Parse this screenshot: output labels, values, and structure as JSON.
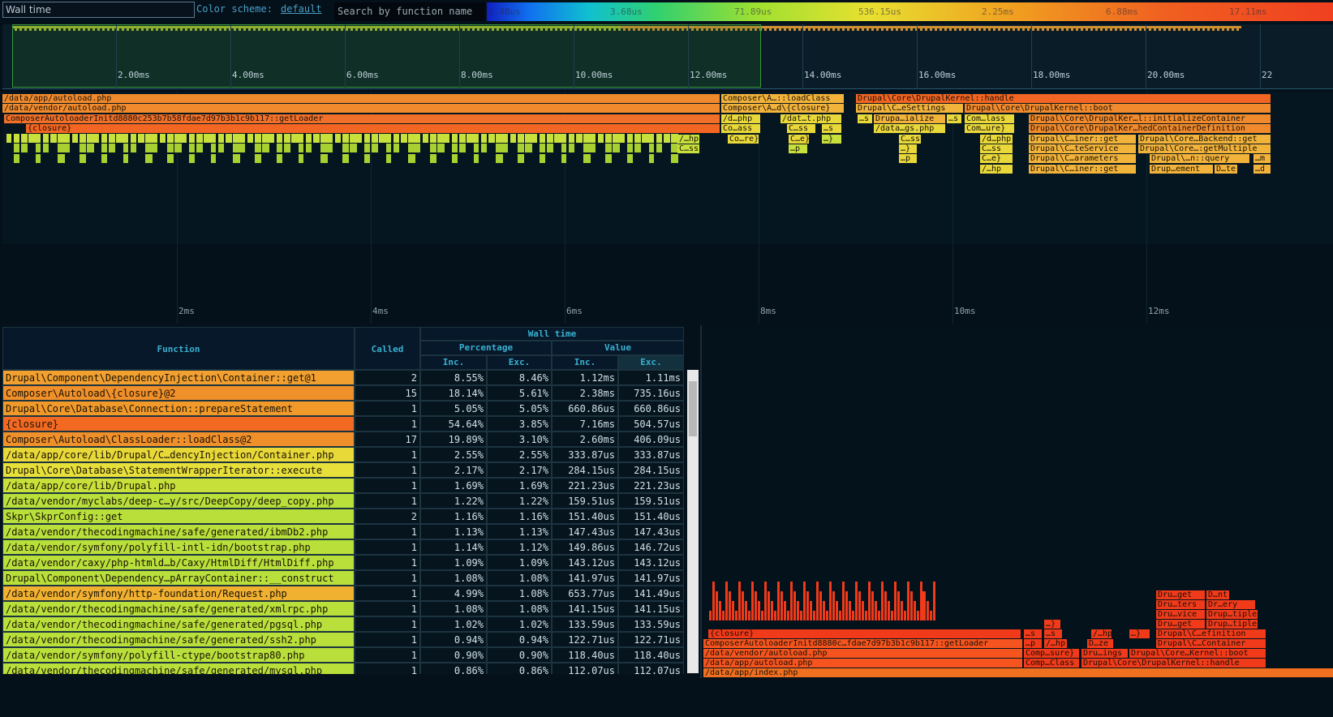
{
  "toolbar": {
    "metric": "Wall time",
    "color_scheme_label": "Color scheme:",
    "color_scheme": "default",
    "search_placeholder": "Search by function name",
    "legend": [
      "1.48us",
      "3.68us",
      "71.89us",
      "536.15us",
      "2.25ms",
      "6.88ms",
      "17.11ms"
    ]
  },
  "overview": {
    "ticks": [
      "2.00ms",
      "4.00ms",
      "6.00ms",
      "8.00ms",
      "10.00ms",
      "12.00ms",
      "14.00ms",
      "16.00ms",
      "18.00ms",
      "20.00ms",
      "22"
    ]
  },
  "timeline": {
    "ticks": [
      "2ms",
      "4ms",
      "6ms",
      "8ms",
      "10ms",
      "12ms"
    ],
    "frames": [
      "/data/app/autoload.php",
      "Composer\\A…::loadClass",
      "Drupal\\Core\\DrupalKernel::handle",
      "/data/vendor/autoload.php",
      "Composer\\A…d\\{closure}",
      "Drupal\\C…eSettings",
      "Drupal\\Core\\DrupalKernel::boot",
      "ComposerAutoloaderInitd8880c253b7b58fdae7d97b3b1c9b117::getLoader",
      "/d…php",
      "/dat…t.php",
      "…s",
      "Drupa…ialize",
      "…s",
      "Com…lass",
      "Drupal\\Core\\DrupalKer…l::initializeContainer",
      "{closure}",
      "Co…ass",
      "C…ss",
      "…s",
      "/data…gs.php",
      "Com…ure}",
      "Drupal\\Core\\DrupalKer…hedContainerDefinition",
      "/…hp",
      "Co…re}",
      "C…e}",
      "…}",
      "C…ss",
      "/d…php",
      "Drupal\\C…iner::get",
      "Drupal\\Core…Backend::get",
      "C…ss",
      "…p",
      "…}",
      "C…ss",
      "Drupal\\C…teService",
      "Drupal\\Core…:getMultiple",
      "…p",
      "C…e}",
      "Drupal\\C…arameters",
      "Drupal\\…n::query",
      "…m",
      "/…hp",
      "Drupal\\C…iner::get",
      "Drup…ement",
      "D…te",
      "…d"
    ]
  },
  "table": {
    "header": {
      "group": "Wall time",
      "function": "Function",
      "called": "Called",
      "percentage": "Percentage",
      "value": "Value",
      "inc": "Inc.",
      "exc": "Exc."
    },
    "rows": [
      [
        "Drupal\\Component\\DependencyInjection\\Container::get@1",
        2,
        "8.55%",
        "8.46%",
        "1.12ms",
        "1.11ms"
      ],
      [
        "Composer\\Autoload\\{closure}@2",
        15,
        "18.14%",
        "5.61%",
        "2.38ms",
        "735.16us"
      ],
      [
        "Drupal\\Core\\Database\\Connection::prepareStatement",
        1,
        "5.05%",
        "5.05%",
        "660.86us",
        "660.86us"
      ],
      [
        "{closure}",
        1,
        "54.64%",
        "3.85%",
        "7.16ms",
        "504.57us"
      ],
      [
        "Composer\\Autoload\\ClassLoader::loadClass@2",
        17,
        "19.89%",
        "3.10%",
        "2.60ms",
        "406.09us"
      ],
      [
        "/data/app/core/lib/Drupal/C…dencyInjection/Container.php",
        1,
        "2.55%",
        "2.55%",
        "333.87us",
        "333.87us"
      ],
      [
        "Drupal\\Core\\Database\\StatementWrapperIterator::execute",
        1,
        "2.17%",
        "2.17%",
        "284.15us",
        "284.15us"
      ],
      [
        "/data/app/core/lib/Drupal.php",
        1,
        "1.69%",
        "1.69%",
        "221.23us",
        "221.23us"
      ],
      [
        "/data/vendor/myclabs/deep-c…y/src/DeepCopy/deep_copy.php",
        1,
        "1.22%",
        "1.22%",
        "159.51us",
        "159.51us"
      ],
      [
        "Skpr\\SkprConfig::get",
        2,
        "1.16%",
        "1.16%",
        "151.40us",
        "151.40us"
      ],
      [
        "/data/vendor/thecodingmachine/safe/generated/ibmDb2.php",
        1,
        "1.13%",
        "1.13%",
        "147.43us",
        "147.43us"
      ],
      [
        "/data/vendor/symfony/polyfill-intl-idn/bootstrap.php",
        1,
        "1.14%",
        "1.12%",
        "149.86us",
        "146.72us"
      ],
      [
        "/data/vendor/caxy/php-htmld…b/Caxy/HtmlDiff/HtmlDiff.php",
        1,
        "1.09%",
        "1.09%",
        "143.12us",
        "143.12us"
      ],
      [
        "Drupal\\Component\\Dependency…pArrayContainer::__construct",
        1,
        "1.08%",
        "1.08%",
        "141.97us",
        "141.97us"
      ],
      [
        "/data/vendor/symfony/http-foundation/Request.php",
        1,
        "4.99%",
        "1.08%",
        "653.77us",
        "141.49us"
      ],
      [
        "/data/vendor/thecodingmachine/safe/generated/xmlrpc.php",
        1,
        "1.08%",
        "1.08%",
        "141.15us",
        "141.15us"
      ],
      [
        "/data/vendor/thecodingmachine/safe/generated/pgsql.php",
        1,
        "1.02%",
        "1.02%",
        "133.59us",
        "133.59us"
      ],
      [
        "/data/vendor/thecodingmachine/safe/generated/ssh2.php",
        1,
        "0.94%",
        "0.94%",
        "122.71us",
        "122.71us"
      ],
      [
        "/data/vendor/symfony/polyfill-ctype/bootstrap80.php",
        1,
        "0.90%",
        "0.90%",
        "118.40us",
        "118.40us"
      ],
      [
        "/data/vendor/thecodingmachine/safe/generated/mysql.php",
        1,
        "0.86%",
        "0.86%",
        "112.07us",
        "112.07us"
      ]
    ]
  },
  "flamegraph": {
    "frames": [
      "/data/app/index.php",
      "/data/app/autoload.php",
      "Comp…Class",
      "Drupal\\Core\\DrupalKernel::handle",
      "/data/vendor/autoload.php",
      "Comp…sure}",
      "Dru…ings",
      "Drupal\\Core…Kernel::boot",
      "ComposerAutoloaderInitd8880c…fdae7d97b3b1c9b117::getLoader",
      "…p",
      "/…hp",
      "D…ze",
      "Drupal\\C…Container",
      "{closure}",
      "…s",
      "…s",
      "/…hp",
      "…}",
      "Drupal\\C…efinition",
      "…}",
      "Dru…get",
      "Drup…tiple",
      "Dru…vice",
      "Drup…tiple",
      "Dru…ters",
      "Dr…ery",
      "Dru…get",
      "D…nt"
    ]
  }
}
